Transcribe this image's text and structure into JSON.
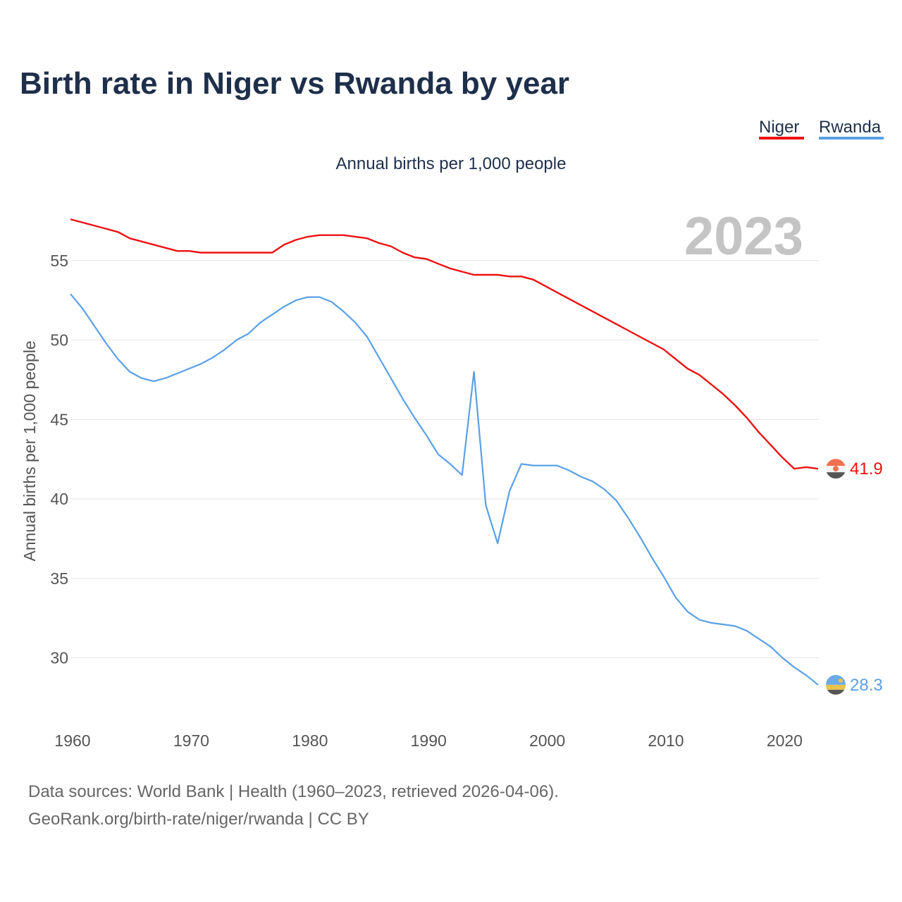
{
  "chart_data": {
    "type": "line",
    "title": "Birth rate in Niger vs Rwanda by year",
    "subtitle": "Annual births per 1,000 people",
    "ylabel": "Annual births per 1,000 people",
    "xlabel": "",
    "year_badge": "2023",
    "xlim": [
      1960,
      2023
    ],
    "ylim": [
      26.5,
      59.5
    ],
    "x_ticks": [
      1960,
      1970,
      1980,
      1990,
      2000,
      2010,
      2020
    ],
    "y_ticks": [
      30,
      35,
      40,
      45,
      50,
      55
    ],
    "grid": true,
    "legend_position": "top-right",
    "x": [
      1960,
      1961,
      1962,
      1963,
      1964,
      1965,
      1966,
      1967,
      1968,
      1969,
      1970,
      1971,
      1972,
      1973,
      1974,
      1975,
      1976,
      1977,
      1978,
      1979,
      1980,
      1981,
      1982,
      1983,
      1984,
      1985,
      1986,
      1987,
      1988,
      1989,
      1990,
      1991,
      1992,
      1993,
      1994,
      1995,
      1996,
      1997,
      1998,
      1999,
      2000,
      2001,
      2002,
      2003,
      2004,
      2005,
      2006,
      2007,
      2008,
      2009,
      2010,
      2011,
      2012,
      2013,
      2014,
      2015,
      2016,
      2017,
      2018,
      2019,
      2020,
      2021,
      2022,
      2023
    ],
    "series": [
      {
        "name": "Niger",
        "color": "#ee1111",
        "end_label": "41.9",
        "values": [
          57.6,
          57.4,
          57.2,
          57.0,
          56.8,
          56.4,
          56.2,
          56.0,
          55.8,
          55.6,
          55.6,
          55.5,
          55.5,
          55.5,
          55.5,
          55.5,
          55.5,
          55.5,
          56.0,
          56.3,
          56.5,
          56.6,
          56.6,
          56.6,
          56.5,
          56.4,
          56.1,
          55.9,
          55.5,
          55.2,
          55.1,
          54.8,
          54.5,
          54.3,
          54.1,
          54.1,
          54.1,
          54.0,
          54.0,
          53.8,
          53.4,
          53.0,
          52.6,
          52.2,
          51.8,
          51.4,
          51.0,
          50.6,
          50.2,
          49.8,
          49.4,
          48.8,
          48.2,
          47.8,
          47.2,
          46.6,
          45.9,
          45.1,
          44.2,
          43.4,
          42.6,
          41.9,
          42.0,
          41.9
        ]
      },
      {
        "name": "Rwanda",
        "color": "#5aa0e6",
        "end_label": "28.3",
        "values": [
          52.9,
          52.0,
          50.9,
          49.8,
          48.8,
          48.0,
          47.6,
          47.4,
          47.6,
          47.9,
          48.2,
          48.5,
          48.9,
          49.4,
          50.0,
          50.4,
          51.1,
          51.6,
          52.1,
          52.5,
          52.7,
          52.7,
          52.4,
          51.8,
          51.1,
          50.2,
          48.9,
          47.6,
          46.3,
          45.1,
          44.0,
          42.8,
          42.2,
          41.5,
          48.0,
          39.6,
          37.2,
          40.5,
          42.2,
          42.1,
          42.1,
          42.1,
          41.8,
          41.4,
          41.1,
          40.6,
          39.9,
          38.8,
          37.6,
          36.3,
          35.1,
          33.8,
          32.9,
          32.4,
          32.2,
          32.1,
          32.0,
          31.7,
          31.2,
          30.7,
          30.0,
          29.4,
          28.9,
          28.3
        ]
      }
    ],
    "source_line_1": "Data sources: World Bank | Health (1960–2023, retrieved 2026-04-06).",
    "source_line_2": "GeoRank.org/birth-rate/niger/rwanda | CC BY"
  }
}
